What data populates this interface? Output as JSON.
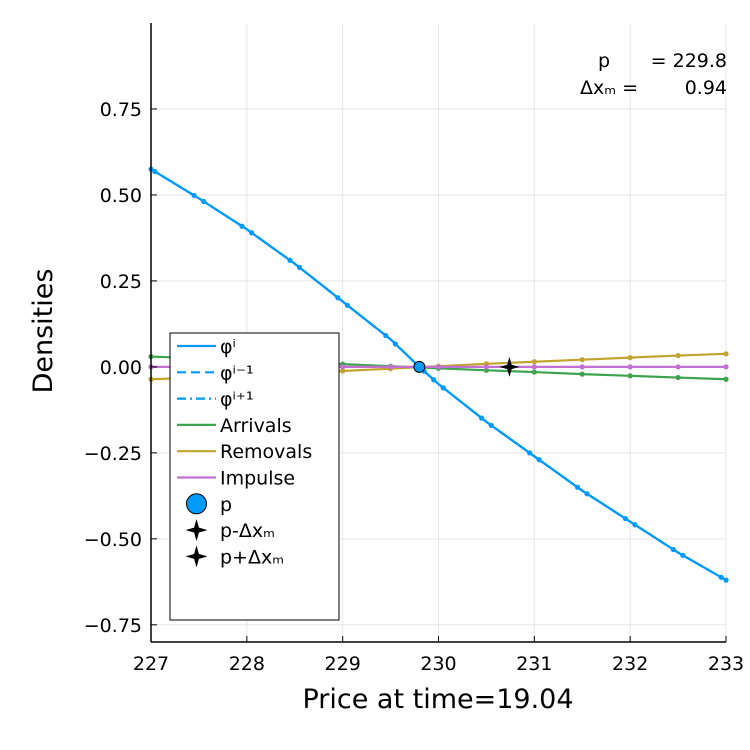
{
  "chart_data": {
    "type": "line",
    "title": "",
    "xlabel": "Price at time=19.04",
    "ylabel": "Densities",
    "xlim": [
      227,
      233
    ],
    "ylim": [
      -0.8,
      1.0
    ],
    "xticks": [
      227,
      228,
      229,
      230,
      231,
      232,
      233
    ],
    "xtick_labels": [
      "227",
      "228",
      "229",
      "230",
      "231",
      "232",
      "233"
    ],
    "yticks": [
      -0.75,
      -0.5,
      -0.25,
      0.0,
      0.25,
      0.5,
      0.75
    ],
    "ytick_labels": [
      "−0.75",
      "−0.50",
      "−0.25",
      "0.00",
      "0.25",
      "0.50",
      "0.75"
    ],
    "grid": true,
    "legend_position": "bottom-left",
    "annotation": {
      "line1_label": "p",
      "line1_value": "= 229.8",
      "line2_label": "Δxₘ =",
      "line2_value": "0.94"
    },
    "series": [
      {
        "name": "φⁱ",
        "style": "solid",
        "color": "#009AFA",
        "x": [
          227.0,
          227.5,
          228.0,
          228.5,
          229.0,
          229.5,
          229.8,
          230.0,
          230.5,
          231.0,
          231.5,
          232.0,
          232.5,
          233.0
        ],
        "y": [
          0.575,
          0.49,
          0.4,
          0.3,
          0.19,
          0.08,
          0.0,
          -0.05,
          -0.16,
          -0.26,
          -0.36,
          -0.45,
          -0.54,
          -0.62
        ],
        "marker_x": [
          227.0,
          227.04,
          227.45,
          227.55,
          227.95,
          228.05,
          228.45,
          228.55,
          228.95,
          229.05,
          229.45,
          229.55,
          229.85,
          229.95,
          230.05,
          230.45,
          230.55,
          230.95,
          231.05,
          231.45,
          231.55,
          231.95,
          232.05,
          232.45,
          232.55,
          232.95,
          233.0
        ]
      },
      {
        "name": "φⁱ⁻¹",
        "style": "dashed",
        "color": "#009AFA",
        "x": [
          227.0,
          227.5,
          228.0,
          228.5,
          229.0,
          229.5,
          229.8,
          230.0,
          230.5,
          231.0,
          231.5,
          232.0,
          232.5,
          233.0
        ],
        "y": [
          0.575,
          0.49,
          0.4,
          0.3,
          0.19,
          0.08,
          0.0,
          -0.05,
          -0.16,
          -0.26,
          -0.36,
          -0.45,
          -0.54,
          -0.62
        ]
      },
      {
        "name": "φⁱ⁺¹",
        "style": "dashdot",
        "color": "#009AFA",
        "x": [
          227.0,
          227.5,
          228.0,
          228.5,
          229.0,
          229.5,
          229.8,
          230.0,
          230.5,
          231.0,
          231.5,
          232.0,
          232.5,
          233.0
        ],
        "y": [
          0.575,
          0.49,
          0.4,
          0.3,
          0.19,
          0.08,
          0.0,
          -0.05,
          -0.16,
          -0.26,
          -0.36,
          -0.45,
          -0.54,
          -0.62
        ]
      },
      {
        "name": "Arrivals",
        "style": "solid",
        "color": "#3DA44D",
        "x": [
          227.0,
          227.5,
          228.0,
          228.5,
          229.0,
          229.5,
          230.0,
          230.5,
          231.0,
          231.5,
          232.0,
          232.5,
          233.0
        ],
        "y": [
          0.03,
          0.025,
          0.02,
          0.014,
          0.008,
          0.002,
          -0.004,
          -0.01,
          -0.015,
          -0.021,
          -0.026,
          -0.031,
          -0.036
        ],
        "marker_x": [
          227.0,
          227.5,
          228.0,
          228.5,
          229.0,
          229.5,
          230.0,
          230.5,
          231.0,
          231.5,
          232.0,
          232.5,
          233.0
        ]
      },
      {
        "name": "Removals",
        "style": "solid",
        "color": "#C1A32D",
        "x": [
          227.0,
          227.5,
          228.0,
          228.5,
          229.0,
          229.5,
          230.0,
          230.5,
          231.0,
          231.5,
          232.0,
          232.5,
          233.0
        ],
        "y": [
          -0.036,
          -0.031,
          -0.025,
          -0.019,
          -0.012,
          -0.005,
          0.002,
          0.009,
          0.015,
          0.021,
          0.027,
          0.033,
          0.038
        ],
        "marker_x": [
          227.0,
          227.5,
          228.0,
          228.5,
          229.0,
          229.5,
          230.0,
          230.5,
          231.0,
          231.5,
          232.0,
          232.5,
          233.0
        ]
      },
      {
        "name": "Impulse",
        "style": "solid",
        "color": "#C271D2",
        "x": [
          227.0,
          227.5,
          228.0,
          228.5,
          229.0,
          229.5,
          230.0,
          230.5,
          231.0,
          231.5,
          232.0,
          232.5,
          233.0
        ],
        "y": [
          0.0,
          0.0,
          0.0,
          0.0,
          0.0,
          0.0,
          0.0,
          0.0,
          0.0,
          0.0,
          0.0,
          0.0,
          0.0
        ],
        "marker_x": [
          227.0,
          227.5,
          228.0,
          228.5,
          229.0,
          229.5,
          230.0,
          230.5,
          231.0,
          231.5,
          232.0,
          232.5,
          233.0
        ]
      }
    ],
    "points": [
      {
        "name": "p",
        "marker": "circle",
        "color": "#009AFA",
        "x": 229.8,
        "y": 0.0
      },
      {
        "name": "p-Δxₘ",
        "marker": "star4",
        "color": "#000000",
        "x": 228.86,
        "y": 0.0
      },
      {
        "name": "p+Δxₘ",
        "marker": "star4",
        "color": "#000000",
        "x": 230.74,
        "y": 0.0
      }
    ]
  }
}
